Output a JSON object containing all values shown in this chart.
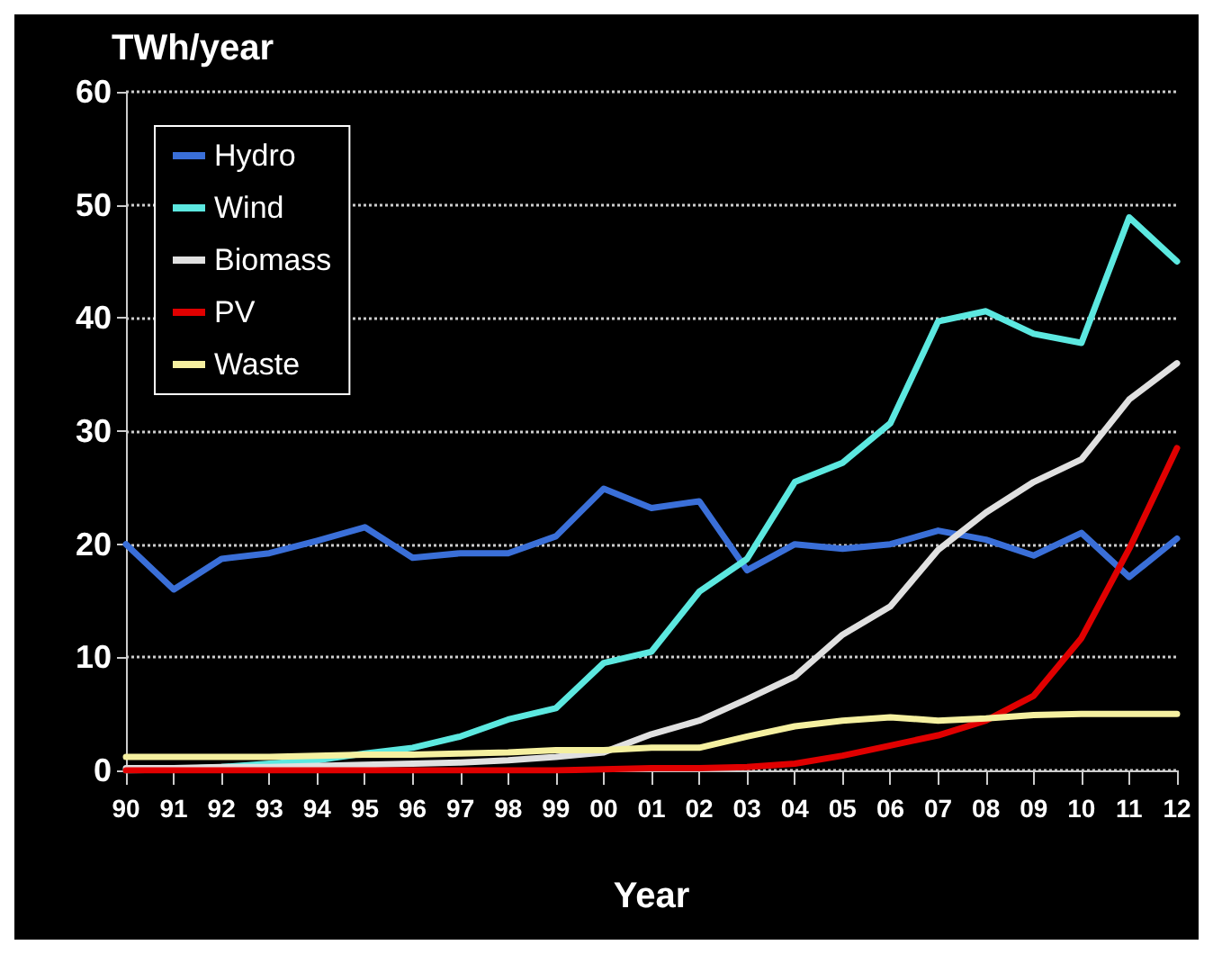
{
  "chart_data": {
    "type": "line",
    "ylabel": "TWh/year",
    "xlabel": "Year",
    "categories": [
      "90",
      "91",
      "92",
      "93",
      "94",
      "95",
      "96",
      "97",
      "98",
      "99",
      "00",
      "01",
      "02",
      "03",
      "04",
      "05",
      "06",
      "07",
      "08",
      "09",
      "10",
      "11",
      "12"
    ],
    "series": [
      {
        "name": "Hydro",
        "color": "#3a6fd8",
        "values": [
          20,
          16,
          18.7,
          19.2,
          20.3,
          21.5,
          18.8,
          19.2,
          19.2,
          20.7,
          24.9,
          23.2,
          23.8,
          17.7,
          20,
          19.6,
          20,
          21.2,
          20.4,
          19,
          21,
          17.1,
          20.5
        ]
      },
      {
        "name": "Wind",
        "color": "#5ce8e0",
        "values": [
          0,
          0.1,
          0.3,
          0.6,
          0.9,
          1.5,
          2,
          3,
          4.5,
          5.5,
          9.5,
          10.5,
          15.8,
          18.7,
          25.5,
          27.2,
          30.7,
          39.7,
          40.6,
          38.6,
          37.8,
          48.9,
          45
        ]
      },
      {
        "name": "Biomass",
        "color": "#e0e0e0",
        "values": [
          0.2,
          0.2,
          0.3,
          0.3,
          0.4,
          0.5,
          0.6,
          0.7,
          0.9,
          1.2,
          1.6,
          3.2,
          4.4,
          6.3,
          8.3,
          12,
          14.5,
          19.5,
          22.8,
          25.5,
          27.5,
          32.8,
          36
        ]
      },
      {
        "name": "PV",
        "color": "#e00000",
        "values": [
          0,
          0,
          0,
          0,
          0,
          0,
          0,
          0,
          0,
          0,
          0.1,
          0.2,
          0.2,
          0.3,
          0.6,
          1.3,
          2.2,
          3.1,
          4.4,
          6.6,
          11.7,
          19.6,
          28.5
        ]
      },
      {
        "name": "Waste",
        "color": "#f5f0a0",
        "values": [
          1.2,
          1.2,
          1.2,
          1.2,
          1.3,
          1.4,
          1.4,
          1.5,
          1.6,
          1.8,
          1.8,
          2,
          2,
          3,
          3.9,
          4.4,
          4.7,
          4.4,
          4.6,
          4.9,
          5,
          5,
          5
        ]
      }
    ],
    "ylim": [
      0,
      60
    ],
    "yticks": [
      0,
      10,
      20,
      30,
      40,
      50,
      60
    ],
    "grid": "y",
    "legend": "top left",
    "marker": "none",
    "line_style": "solid"
  }
}
